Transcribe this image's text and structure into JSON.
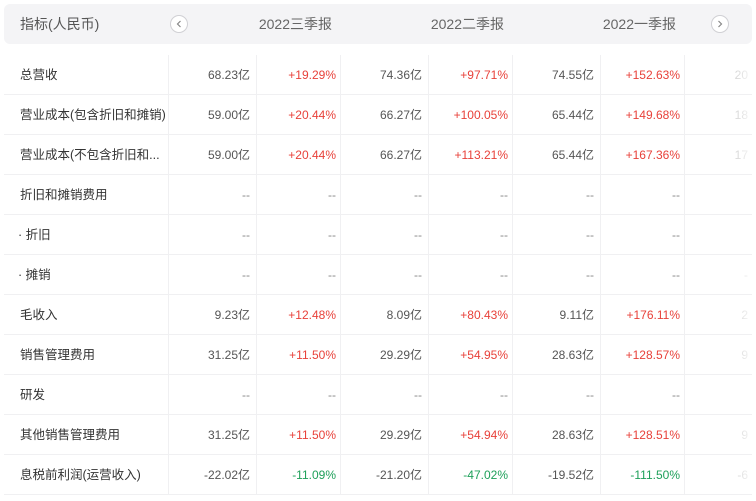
{
  "header": {
    "title": "指标(人民币)",
    "periods": [
      "2022三季报",
      "2022二季报",
      "2022一季报"
    ],
    "prev_icon": "chevron-left-icon",
    "next_icon": "chevron-right-icon"
  },
  "colors": {
    "up": "#e8413a",
    "down": "#1fa05a",
    "header_bg": "#f4f4f6"
  },
  "rows": [
    {
      "label": "总营收",
      "sub": false,
      "cells": [
        [
          "68.23亿",
          "+19.29%",
          "up"
        ],
        [
          "74.36亿",
          "+97.71%",
          "up"
        ],
        [
          "74.55亿",
          "+152.63%",
          "up"
        ]
      ],
      "cut": "20"
    },
    {
      "label": "营业成本(包含折旧和摊销)",
      "sub": false,
      "cells": [
        [
          "59.00亿",
          "+20.44%",
          "up"
        ],
        [
          "66.27亿",
          "+100.05%",
          "up"
        ],
        [
          "65.44亿",
          "+149.68%",
          "up"
        ]
      ],
      "cut": "18"
    },
    {
      "label": "营业成本(不包含折旧和...",
      "sub": false,
      "cells": [
        [
          "59.00亿",
          "+20.44%",
          "up"
        ],
        [
          "66.27亿",
          "+113.21%",
          "up"
        ],
        [
          "65.44亿",
          "+167.36%",
          "up"
        ]
      ],
      "cut": "17"
    },
    {
      "label": "折旧和摊销费用",
      "sub": false,
      "cells": [
        [
          "--",
          "--",
          "dash"
        ],
        [
          "--",
          "--",
          "dash"
        ],
        [
          "--",
          "--",
          "dash"
        ]
      ],
      "cut": ""
    },
    {
      "label": "· 折旧",
      "sub": true,
      "cells": [
        [
          "--",
          "--",
          "dash"
        ],
        [
          "--",
          "--",
          "dash"
        ],
        [
          "--",
          "--",
          "dash"
        ]
      ],
      "cut": ""
    },
    {
      "label": "· 摊销",
      "sub": true,
      "cells": [
        [
          "--",
          "--",
          "dash"
        ],
        [
          "--",
          "--",
          "dash"
        ],
        [
          "--",
          "--",
          "dash"
        ]
      ],
      "cut": "-"
    },
    {
      "label": "毛收入",
      "sub": false,
      "cells": [
        [
          "9.23亿",
          "+12.48%",
          "up"
        ],
        [
          "8.09亿",
          "+80.43%",
          "up"
        ],
        [
          "9.11亿",
          "+176.11%",
          "up"
        ]
      ],
      "cut": "2"
    },
    {
      "label": "销售管理费用",
      "sub": false,
      "cells": [
        [
          "31.25亿",
          "+11.50%",
          "up"
        ],
        [
          "29.29亿",
          "+54.95%",
          "up"
        ],
        [
          "28.63亿",
          "+128.57%",
          "up"
        ]
      ],
      "cut": "9"
    },
    {
      "label": "研发",
      "sub": false,
      "cells": [
        [
          "--",
          "--",
          "dash"
        ],
        [
          "--",
          "--",
          "dash"
        ],
        [
          "--",
          "--",
          "dash"
        ]
      ],
      "cut": ""
    },
    {
      "label": "其他销售管理费用",
      "sub": false,
      "cells": [
        [
          "31.25亿",
          "+11.50%",
          "up"
        ],
        [
          "29.29亿",
          "+54.94%",
          "up"
        ],
        [
          "28.63亿",
          "+128.51%",
          "up"
        ]
      ],
      "cut": "9"
    },
    {
      "label": "息税前利润(运营收入)",
      "sub": false,
      "cells": [
        [
          "-22.02亿",
          "-11.09%",
          "down"
        ],
        [
          "-21.20亿",
          "-47.02%",
          "down"
        ],
        [
          "-19.52亿",
          "-111.50%",
          "down"
        ]
      ],
      "cut": "-6"
    }
  ]
}
